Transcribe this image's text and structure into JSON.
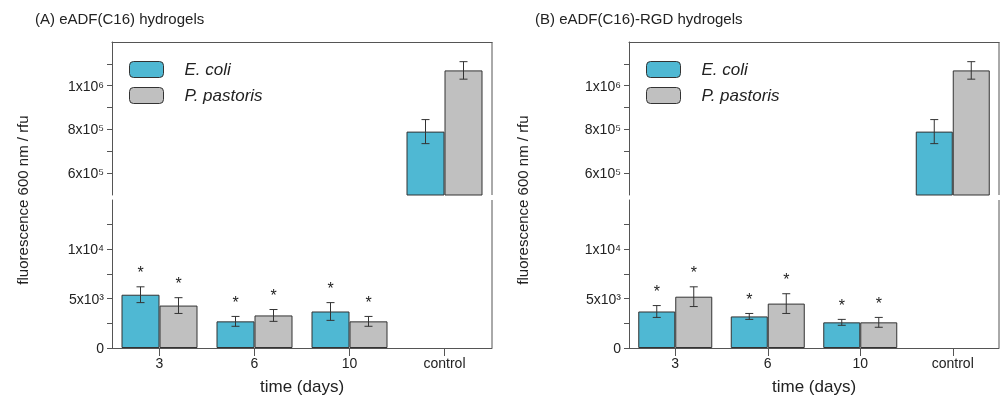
{
  "chart_data": [
    {
      "type": "bar",
      "title": "(A) eADF(C16) hydrogels",
      "ylabel": "fluorescence 600 nm / rfu",
      "categories": [
        null,
        null,
        null,
        null
      ],
      "tick_labels": "y",
      "legend": "top left",
      "series": [
        {
          "name": "E. coli",
          "color": "#4fb8d3",
          "values": [
            null,
            null,
            null,
            790000
          ],
          "errors": [
            null,
            null,
            null,
            55000
          ]
        },
        {
          "name": "P. pastoris",
          "color": "#c0c0c0",
          "values": [
            null,
            null,
            null,
            1070000
          ],
          "errors": [
            null,
            null,
            null,
            40000
          ]
        }
      ],
      "ylim": [
        500000,
        1200000
      ],
      "yticks": [
        {
          "value": 600000,
          "label": "6x10⁵"
        },
        {
          "value": 700000,
          "label": null
        },
        {
          "value": 800000,
          "label": "8x10⁵"
        },
        {
          "value": 900000,
          "label": null
        },
        {
          "value": 1000000,
          "label": "1x10⁶"
        },
        {
          "value": 1100000,
          "label": null
        }
      ]
    },
    {
      "type": "bar",
      "xlabel": "time (days)",
      "categories": [
        "3",
        "6",
        "10",
        "control"
      ],
      "series": [
        {
          "color": "#4fb8d3",
          "values": [
            5400,
            2700,
            3700,
            null
          ],
          "errors": [
            800,
            500,
            900,
            null
          ],
          "value_labels": [
            "*",
            "*",
            "*",
            null
          ]
        },
        {
          "color": "#c0c0c0",
          "values": [
            4300,
            3300,
            2700,
            null
          ],
          "errors": [
            800,
            600,
            500,
            null
          ],
          "value_labels": [
            "*",
            "*",
            "*",
            null
          ]
        }
      ],
      "ylim": [
        0,
        15000
      ],
      "yticks": [
        0,
        {
          "value": 2500,
          "label": null
        },
        {
          "value": 5000,
          "label": "5x10³"
        },
        {
          "value": 7500,
          "label": null
        },
        {
          "value": 10000,
          "label": "1x10⁴"
        },
        {
          "value": 12500,
          "label": null
        }
      ]
    },
    {
      "type": "bar",
      "title": "(B) eADF(C16)-RGD hydrogels",
      "ylabel": "fluorescence 600 nm / rfu",
      "categories": [
        null,
        null,
        null,
        null
      ],
      "tick_labels": "y",
      "legend": "top left",
      "series": [
        {
          "name": "E. coli",
          "color": "#4fb8d3",
          "values": [
            null,
            null,
            null,
            790000
          ],
          "errors": [
            null,
            null,
            null,
            55000
          ]
        },
        {
          "name": "P. pastoris",
          "color": "#c0c0c0",
          "values": [
            null,
            null,
            null,
            1070000
          ],
          "errors": [
            null,
            null,
            null,
            40000
          ]
        }
      ],
      "ylim": [
        500000,
        1200000
      ],
      "yticks": [
        {
          "value": 600000,
          "label": "6x10⁵"
        },
        {
          "value": 700000,
          "label": null
        },
        {
          "value": 800000,
          "label": "8x10⁵"
        },
        {
          "value": 900000,
          "label": null
        },
        {
          "value": 1000000,
          "label": "1x10⁶"
        },
        {
          "value": 1100000,
          "label": null
        }
      ]
    },
    {
      "type": "bar",
      "xlabel": "time (days)",
      "categories": [
        "3",
        "6",
        "10",
        "control"
      ],
      "series": [
        {
          "color": "#4fb8d3",
          "values": [
            3700,
            3200,
            2600,
            null
          ],
          "errors": [
            600,
            300,
            300,
            null
          ],
          "value_labels": [
            "*",
            "*",
            "*",
            null
          ]
        },
        {
          "color": "#c0c0c0",
          "values": [
            5200,
            4500,
            2600,
            null
          ],
          "errors": [
            1000,
            1000,
            500,
            null
          ],
          "value_labels": [
            "*",
            "*",
            "*",
            null
          ]
        }
      ],
      "ylim": [
        0,
        15000
      ],
      "yticks": [
        0,
        {
          "value": 2500,
          "label": null
        },
        {
          "value": 5000,
          "label": "5x10³"
        },
        {
          "value": 7500,
          "label": null
        },
        {
          "value": 10000,
          "label": "1x10⁴"
        },
        {
          "value": 12500,
          "label": null
        }
      ]
    }
  ]
}
